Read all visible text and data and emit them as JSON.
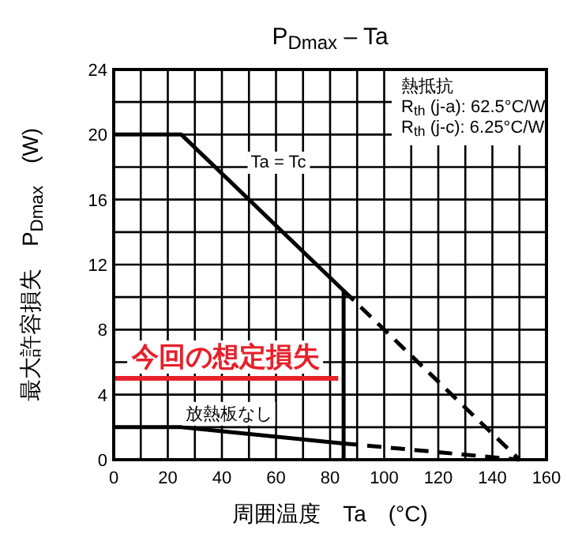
{
  "chart_data": {
    "type": "line",
    "title": "P$_{Dmax}$ – Ta",
    "xlabel": "周囲温度　Ta　(°C)",
    "ylabel": "最大許容損失　P$_{Dmax}$　(W)",
    "xlim": [
      0,
      160
    ],
    "xticks": [
      0,
      {
        "value": 10,
        "label": null
      },
      20,
      {
        "value": 30,
        "label": null
      },
      40,
      {
        "value": 50,
        "label": null
      },
      60,
      {
        "value": 70,
        "label": null
      },
      80,
      {
        "value": 90,
        "label": null
      },
      100,
      {
        "value": 110,
        "label": null
      },
      120,
      {
        "value": 130,
        "label": null
      },
      140,
      {
        "value": 150,
        "label": null
      },
      160
    ],
    "ylim": [
      0,
      24
    ],
    "yticks": [
      0,
      {
        "value": 2,
        "label": null
      },
      4,
      {
        "value": 6,
        "label": null
      },
      8,
      {
        "value": 10,
        "label": null
      },
      12,
      {
        "value": 14,
        "label": null
      },
      16,
      {
        "value": 18,
        "label": null
      },
      20,
      {
        "value": 22,
        "label": null
      },
      24
    ],
    "grid": true,
    "series": [
      {
        "name": "Ta = Tc",
        "color": "#000000",
        "line_style": "solid",
        "x": [
          0,
          25,
          85,
          85
        ],
        "values": [
          20,
          20,
          10.4,
          0
        ]
      },
      {
        "color": "#000000",
        "line_style": "dashed",
        "x": [
          85,
          150
        ],
        "values": [
          10.4,
          0
        ]
      },
      {
        "name": "放熱板なし",
        "color": "#000000",
        "line_style": "solid",
        "x": [
          0,
          25,
          85
        ],
        "values": [
          2,
          2,
          1
        ]
      },
      {
        "color": "#000000",
        "line_style": "dashed",
        "x": [
          85,
          150
        ],
        "values": [
          1,
          0
        ]
      },
      {
        "name": "今回の想定損失",
        "color": "#e8202a",
        "line_style": "solid",
        "x": [
          0,
          83
        ],
        "values": [
          5,
          5
        ]
      }
    ],
    "annotations": [
      "熱抵抗\nR$_{th}$ (j-a): 62.5°C/W\nR$_{th}$ (j-c): 6.25°C/W"
    ]
  }
}
